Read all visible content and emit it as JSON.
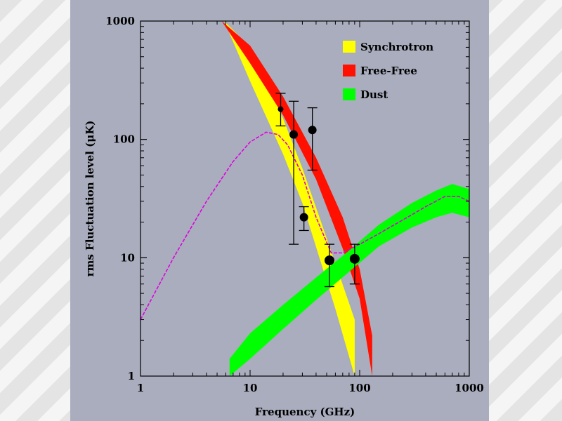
{
  "chart_data": {
    "type": "line",
    "xlabel": "Frequency (GHz)",
    "ylabel": "rms Fluctuation level (μK)",
    "xscale": "log",
    "yscale": "log",
    "xlim": [
      1,
      1000
    ],
    "ylim": [
      1,
      1000
    ],
    "xticks": [
      {
        "v": 1,
        "label": "1"
      },
      {
        "v": 10,
        "label": "10"
      },
      {
        "v": 100,
        "label": "100"
      },
      {
        "v": 1000,
        "label": "1000"
      }
    ],
    "yticks": [
      {
        "v": 1,
        "label": "1"
      },
      {
        "v": 10,
        "label": "10"
      },
      {
        "v": 100,
        "label": "100"
      },
      {
        "v": 1000,
        "label": "1000"
      }
    ],
    "grid": false,
    "legend_position": "top-right",
    "bands": [
      {
        "name": "Synchrotron",
        "color": "#ffff00",
        "x": [
          5.8,
          10,
          20,
          30,
          60,
          90
        ],
        "lower": [
          1000,
          310,
          75,
          29,
          3.7,
          1
        ],
        "upper": [
          1000,
          600,
          150,
          57,
          9,
          3
        ]
      },
      {
        "name": "Free-Free",
        "color": "#ff1000",
        "x": [
          5.5,
          10,
          20,
          40,
          70,
          100,
          130
        ],
        "lower": [
          1000,
          440,
          160,
          46,
          12,
          4.5,
          1
        ],
        "upper": [
          1000,
          620,
          230,
          70,
          22,
          8,
          2.2
        ]
      },
      {
        "name": "Dust",
        "color": "#00ff00",
        "x": [
          6.5,
          10,
          20,
          40,
          80,
          150,
          300,
          500,
          700,
          1000
        ],
        "lower": [
          1,
          1.4,
          2.5,
          4.4,
          7.6,
          12.5,
          18,
          22,
          24,
          22
        ],
        "upper": [
          1.4,
          2.3,
          4,
          6.8,
          11.5,
          19,
          29,
          37,
          42,
          38
        ]
      }
    ],
    "model_curve": {
      "color": "#e000e0",
      "x": [
        1,
        2,
        4,
        7,
        10,
        14,
        18,
        22,
        30,
        40,
        55,
        70,
        100,
        150,
        250,
        400,
        600,
        800,
        1000
      ],
      "y": [
        3,
        10,
        30,
        65,
        95,
        115,
        110,
        90,
        50,
        22,
        11,
        11,
        13,
        16,
        21,
        27,
        33,
        33,
        30
      ]
    },
    "data_points": {
      "x": [
        19,
        25,
        31,
        37,
        53,
        90
      ],
      "y": [
        180,
        110,
        22,
        120,
        9.5,
        9.8
      ],
      "yerr_low": [
        130,
        13,
        17,
        55,
        5.7,
        6
      ],
      "yerr_high": [
        245,
        210,
        27,
        185,
        13,
        13
      ],
      "marker_size": [
        4,
        6,
        6,
        6,
        7,
        7
      ]
    }
  }
}
